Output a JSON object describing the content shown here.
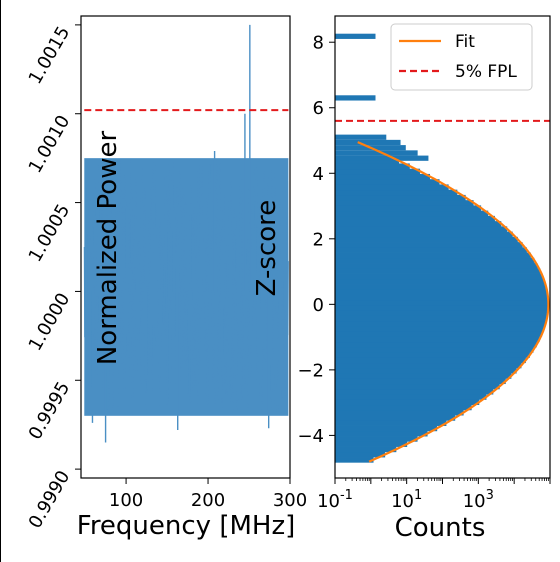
{
  "chart_data": [
    {
      "type": "line",
      "xlabel": "Frequency [MHz]",
      "ylabel": "Normalized Power",
      "xlim": [
        45,
        300
      ],
      "ylim": [
        0.99895,
        1.00155
      ],
      "xticks": [
        100,
        200,
        300
      ],
      "yticks": [
        0.999,
        0.9995,
        1.0,
        1.0005,
        1.001,
        1.0015
      ],
      "ytick_labels": [
        "0.9990",
        "0.9995",
        "1.0000",
        "1.0005",
        "1.0010",
        "1.0015"
      ],
      "line_color": "#4a8fc4",
      "band": {
        "upper": 1.00075,
        "lower": 0.9993,
        "mean": 1.0
      },
      "spikes": [
        {
          "x": 251,
          "y": 1.0015
        },
        {
          "x": 245,
          "y": 1.001
        },
        {
          "x": 59,
          "y": 0.99926
        },
        {
          "x": 75,
          "y": 0.99915
        },
        {
          "x": 163,
          "y": 0.99922
        },
        {
          "x": 274,
          "y": 0.99923
        },
        {
          "x": 208,
          "y": 1.00079
        }
      ],
      "hline": {
        "y": 1.00102,
        "color": "#e31a1c",
        "style": "dashed"
      },
      "grid": false
    },
    {
      "type": "histogram",
      "orientation": "horizontal",
      "xlabel": "Counts",
      "ylabel": "Z-score",
      "xscale": "log",
      "xlim": [
        0.1,
        100000
      ],
      "ylim": [
        -5.3,
        8.8
      ],
      "xticks": [
        0.1,
        10,
        1000
      ],
      "xtick_labels": [
        "10^-1",
        "10^1",
        "10^3"
      ],
      "yticks": [
        -4,
        -2,
        0,
        2,
        4,
        6,
        8
      ],
      "ytick_labels": [
        "−4",
        "−2",
        "0",
        "2",
        "4",
        "6",
        "8"
      ],
      "bar_color": "#1f77b4",
      "bin_width": 0.16,
      "peak_count": 90000,
      "outlier_bins": [
        {
          "z": 8.18,
          "count": 1
        },
        {
          "z": 6.3,
          "count": 1
        },
        {
          "z": 5.1,
          "count": 2
        },
        {
          "z": 4.94,
          "count": 5
        },
        {
          "z": 4.78,
          "count": 7
        },
        {
          "z": 4.62,
          "count": 15
        },
        {
          "z": 4.46,
          "count": 30
        }
      ],
      "fit": {
        "name": "Fit",
        "color": "#ff7f0e",
        "peak_count": 90000,
        "z_range": [
          -4.8,
          4.95
        ]
      },
      "hline": {
        "name": "5% FPL",
        "y": 5.6,
        "color": "#e31a1c",
        "style": "dashed"
      },
      "legend": {
        "position": "top-right",
        "entries": [
          "Fit",
          "5% FPL"
        ]
      },
      "grid": false
    }
  ]
}
